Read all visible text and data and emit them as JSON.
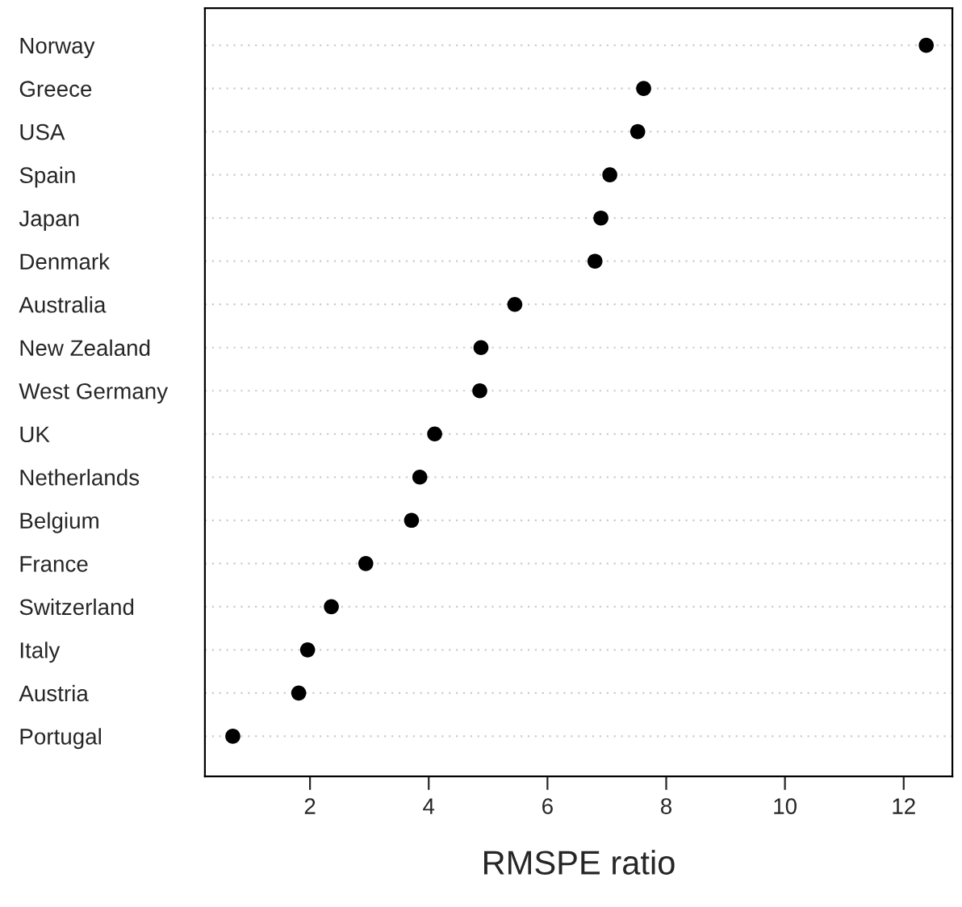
{
  "chart_data": {
    "type": "scatter",
    "orientation": "horizontal",
    "xlabel": "RMSPE ratio",
    "categories": [
      "Norway",
      "Greece",
      "USA",
      "Spain",
      "Japan",
      "Denmark",
      "Australia",
      "New Zealand",
      "West Germany",
      "UK",
      "Netherlands",
      "Belgium",
      "France",
      "Switzerland",
      "Italy",
      "Austria",
      "Portugal"
    ],
    "values": [
      12.38,
      7.62,
      7.52,
      7.05,
      6.9,
      6.8,
      5.45,
      4.88,
      4.86,
      4.1,
      3.85,
      3.71,
      2.94,
      2.36,
      1.96,
      1.81,
      0.7
    ],
    "color": "#000000",
    "marker": "circle",
    "xlim": [
      0.23,
      12.82
    ],
    "xticks": [
      2,
      4,
      6,
      8,
      10,
      12
    ],
    "grid": "y"
  }
}
